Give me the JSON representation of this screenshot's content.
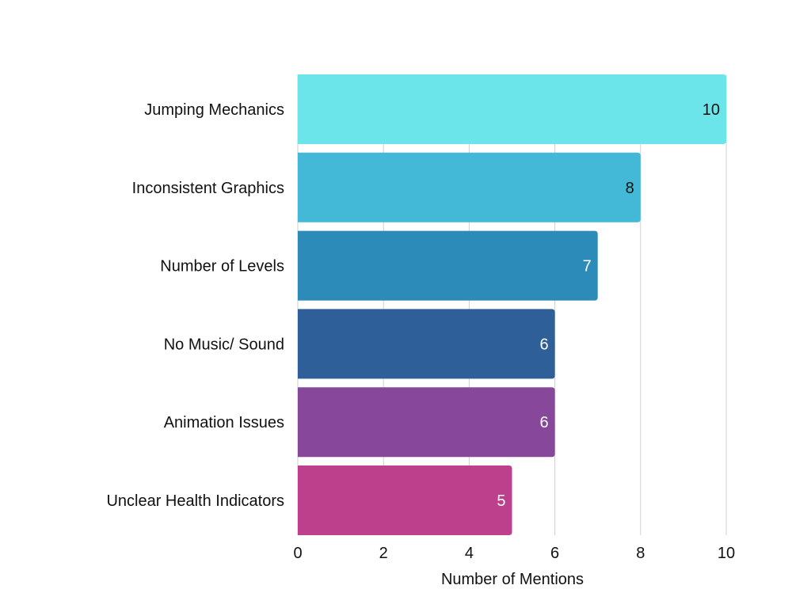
{
  "chart_data": {
    "type": "bar",
    "orientation": "horizontal",
    "categories": [
      "Jumping Mechanics",
      "Inconsistent Graphics",
      "Number of Levels",
      "No Music/ Sound",
      "Animation Issues",
      "Unclear Health Indicators"
    ],
    "values": [
      10,
      8,
      7,
      6,
      6,
      5
    ],
    "colors": [
      "#6be5e9",
      "#43b8d7",
      "#2d8bba",
      "#2e5f98",
      "#87479a",
      "#bc408b"
    ],
    "value_label_colors": [
      "#111111",
      "#111111",
      "#ffffff",
      "#ffffff",
      "#ffffff",
      "#ffffff"
    ],
    "xlabel": "Number of Mentions",
    "ylabel": "",
    "title": "",
    "xlim": [
      0,
      10
    ],
    "x_ticks": [
      0,
      2,
      4,
      6,
      8,
      10
    ],
    "grid": "vertical"
  }
}
